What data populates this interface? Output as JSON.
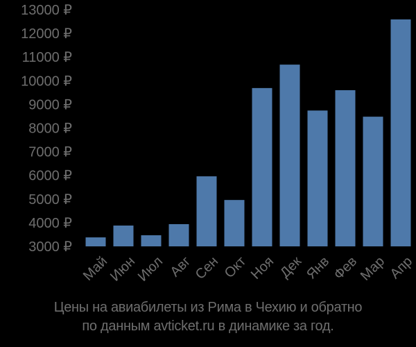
{
  "chart_data": {
    "type": "bar",
    "title": "Цены на авиабилеты из Рима в Чехию и обратно по данным avticket.ru в динамике за год.",
    "xlabel": "",
    "ylabel": "",
    "ylim": [
      3000,
      13000
    ],
    "yticks": [
      3000,
      4000,
      5000,
      6000,
      7000,
      8000,
      9000,
      10000,
      11000,
      12000,
      13000
    ],
    "ytick_labels": [
      "3000 ₽",
      "4000 ₽",
      "5000 ₽",
      "6000 ₽",
      "7000 ₽",
      "8000 ₽",
      "9000 ₽",
      "10000 ₽",
      "11000 ₽",
      "12000 ₽",
      "13000 ₽"
    ],
    "categories": [
      "Май",
      "Июн",
      "Июл",
      "Авг",
      "Сен",
      "Окт",
      "Ноя",
      "Дек",
      "Янв",
      "Фев",
      "Мар",
      "Апр"
    ],
    "values": [
      3380,
      3880,
      3470,
      3940,
      5960,
      4960,
      9690,
      10680,
      8740,
      9600,
      8480,
      12590
    ],
    "currency": "₽",
    "grid": false,
    "legend": null,
    "bar_color": "#4e79aa",
    "text_color": "#6e6e6e",
    "background": "#000000"
  },
  "caption": {
    "line1": "Цены на авиабилеты из Рима в Чехию и обратно",
    "line2": "по данным avticket.ru в динамике за год."
  }
}
